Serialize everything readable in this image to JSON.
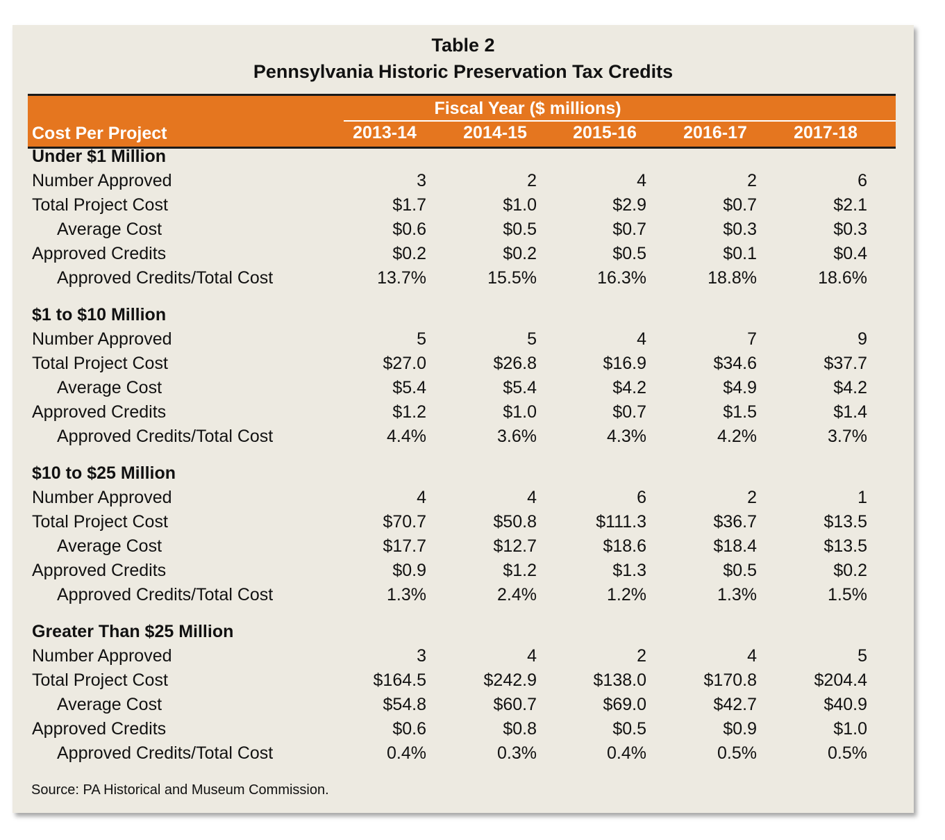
{
  "title": "Table 2",
  "subtitle": "Pennsylvania Historic Preservation Tax Credits",
  "header": {
    "group_label": "Fiscal Year ($ millions)",
    "row_label": "Cost Per Project",
    "years": [
      "2013-14",
      "2014-15",
      "2015-16",
      "2016-17",
      "2017-18"
    ]
  },
  "sections": [
    {
      "name": "Under $1 Million",
      "rows": [
        {
          "label": "Number Approved",
          "values": [
            "3",
            "2",
            "4",
            "2",
            "6"
          ]
        },
        {
          "label": "Total Project Cost",
          "values": [
            "$1.7",
            "$1.0",
            "$2.9",
            "$0.7",
            "$2.1"
          ]
        },
        {
          "label": "Average Cost",
          "values": [
            "$0.6",
            "$0.5",
            "$0.7",
            "$0.3",
            "$0.3"
          ]
        },
        {
          "label": "Approved Credits",
          "values": [
            "$0.2",
            "$0.2",
            "$0.5",
            "$0.1",
            "$0.4"
          ]
        },
        {
          "label": "Approved Credits/Total Cost",
          "values": [
            "13.7%",
            "15.5%",
            "16.3%",
            "18.8%",
            "18.6%"
          ]
        }
      ]
    },
    {
      "name": "$1 to $10 Million",
      "rows": [
        {
          "label": "Number Approved",
          "values": [
            "5",
            "5",
            "4",
            "7",
            "9"
          ]
        },
        {
          "label": "Total Project Cost",
          "values": [
            "$27.0",
            "$26.8",
            "$16.9",
            "$34.6",
            "$37.7"
          ]
        },
        {
          "label": "Average Cost",
          "values": [
            "$5.4",
            "$5.4",
            "$4.2",
            "$4.9",
            "$4.2"
          ]
        },
        {
          "label": "Approved Credits",
          "values": [
            "$1.2",
            "$1.0",
            "$0.7",
            "$1.5",
            "$1.4"
          ]
        },
        {
          "label": "Approved Credits/Total Cost",
          "values": [
            "4.4%",
            "3.6%",
            "4.3%",
            "4.2%",
            "3.7%"
          ]
        }
      ]
    },
    {
      "name": "$10 to $25 Million",
      "rows": [
        {
          "label": "Number Approved",
          "values": [
            "4",
            "4",
            "6",
            "2",
            "1"
          ]
        },
        {
          "label": "Total Project Cost",
          "values": [
            "$70.7",
            "$50.8",
            "$111.3",
            "$36.7",
            "$13.5"
          ]
        },
        {
          "label": "Average Cost",
          "values": [
            "$17.7",
            "$12.7",
            "$18.6",
            "$18.4",
            "$13.5"
          ]
        },
        {
          "label": "Approved Credits",
          "values": [
            "$0.9",
            "$1.2",
            "$1.3",
            "$0.5",
            "$0.2"
          ]
        },
        {
          "label": "Approved Credits/Total Cost",
          "values": [
            "1.3%",
            "2.4%",
            "1.2%",
            "1.3%",
            "1.5%"
          ]
        }
      ]
    },
    {
      "name": "Greater Than $25 Million",
      "rows": [
        {
          "label": "Number Approved",
          "values": [
            "3",
            "4",
            "2",
            "4",
            "5"
          ]
        },
        {
          "label": "Total Project Cost",
          "values": [
            "$164.5",
            "$242.9",
            "$138.0",
            "$170.8",
            "$204.4"
          ]
        },
        {
          "label": "Average Cost",
          "values": [
            "$54.8",
            "$60.7",
            "$69.0",
            "$42.7",
            "$40.9"
          ]
        },
        {
          "label": "Approved Credits",
          "values": [
            "$0.6",
            "$0.8",
            "$0.5",
            "$0.9",
            "$1.0"
          ]
        },
        {
          "label": "Approved Credits/Total Cost",
          "values": [
            "0.4%",
            "0.3%",
            "0.4%",
            "0.5%",
            "0.5%"
          ]
        }
      ]
    }
  ],
  "source": "Source: PA Historical and Museum Commission.",
  "colors": {
    "header_bg": "#e5761f",
    "panel_bg": "#edeae1",
    "text": "#111111"
  }
}
